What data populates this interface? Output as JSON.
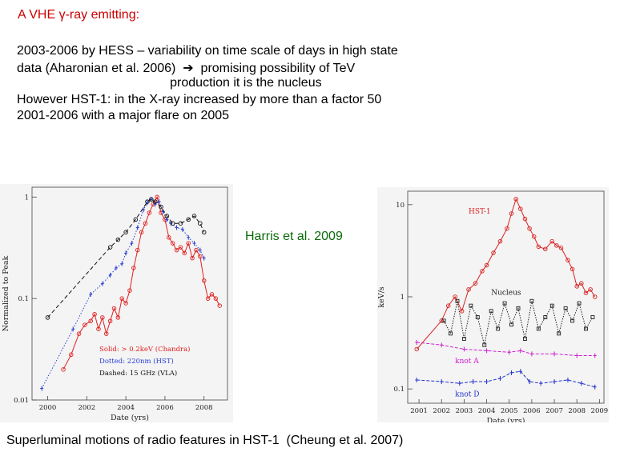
{
  "slide": {
    "title": "A VHE γ-ray emitting:",
    "lines": [
      "2003-2006 by HESS – variability on time scale of days in high state",
      "data (Aharonian et al. 2006)  ➔  promising possibility of TeV",
      "                                           production it is the nucleus",
      "However HST-1: in the X-ray increased by more than a factor 50",
      "2001-2006 with a major flare on 2005"
    ],
    "harris_label": "Harris et al. 2009",
    "caption": "Superluminal motions of radio features in HST-1  (Cheung et al. 2007)"
  },
  "chart_data": [
    {
      "type": "line",
      "scale": "log",
      "xlabel": "Date (yrs)",
      "ylabel": "Normalized to Peak",
      "xlim": [
        1999.2,
        2009.2
      ],
      "ylim": [
        0.01,
        1.25
      ],
      "xticks": [
        2000,
        2002,
        2004,
        2006,
        2008
      ],
      "xtick_labels": [
        "2000",
        "2002",
        "2004",
        "2006",
        "2008"
      ],
      "yticks": [
        0.01,
        0.1,
        1
      ],
      "ytick_labels": [
        "0.01",
        "0.1",
        "1"
      ],
      "legend": [
        "Solid: > 0.2keV (Chandra)",
        "Dotted: 220nm (HST)",
        "Dashed: 15 GHz (VLA)"
      ],
      "legend_colors": [
        "#e02020",
        "#2a3ed0",
        "#111111"
      ],
      "legend_position": "bottom-center",
      "series": [
        {
          "name": "Chandra X-ray",
          "color": "#e02020",
          "dash": "solid",
          "x": [
            2000.8,
            2001.2,
            2001.6,
            2001.9,
            2002.2,
            2002.4,
            2002.6,
            2002.8,
            2003.0,
            2003.2,
            2003.4,
            2003.6,
            2003.8,
            2004.0,
            2004.2,
            2004.4,
            2004.6,
            2004.8,
            2005.0,
            2005.2,
            2005.4,
            2005.6,
            2005.8,
            2006.0,
            2006.2,
            2006.4,
            2006.6,
            2006.8,
            2007.0,
            2007.2,
            2007.4,
            2007.6,
            2007.8,
            2008.0,
            2008.2,
            2008.4,
            2008.6,
            2008.8
          ],
          "y": [
            0.02,
            0.028,
            0.045,
            0.055,
            0.06,
            0.07,
            0.05,
            0.065,
            0.045,
            0.06,
            0.08,
            0.065,
            0.1,
            0.09,
            0.12,
            0.2,
            0.3,
            0.45,
            0.55,
            0.7,
            0.85,
            1.0,
            0.7,
            0.6,
            0.4,
            0.35,
            0.3,
            0.32,
            0.28,
            0.35,
            0.25,
            0.3,
            0.26,
            0.15,
            0.1,
            0.11,
            0.1,
            0.085
          ]
        },
        {
          "name": "HST 220nm",
          "color": "#2a3ed0",
          "dash": "dotted",
          "x": [
            1999.7,
            2001.3,
            2002.2,
            2002.8,
            2003.2,
            2003.5,
            2003.8,
            2004.0,
            2004.3,
            2004.6,
            2004.9,
            2005.1,
            2005.3,
            2005.5,
            2005.7,
            2005.9,
            2006.1,
            2006.3,
            2006.6,
            2006.9,
            2007.2,
            2007.5,
            2007.8,
            2008.0
          ],
          "y": [
            0.013,
            0.05,
            0.11,
            0.14,
            0.17,
            0.2,
            0.22,
            0.28,
            0.35,
            0.5,
            0.75,
            0.88,
            0.95,
            0.85,
            0.9,
            0.72,
            0.6,
            0.55,
            0.5,
            0.48,
            0.4,
            0.35,
            0.3,
            0.25
          ]
        },
        {
          "name": "VLA 15 GHz",
          "color": "#111111",
          "dash": "dashed",
          "x": [
            2000.0,
            2003.2,
            2003.6,
            2004.0,
            2004.5,
            2005.1,
            2005.3,
            2005.5,
            2005.8,
            2006.1,
            2006.4,
            2006.8,
            2007.2,
            2007.5,
            2007.8,
            2008.0
          ],
          "y": [
            0.065,
            0.32,
            0.38,
            0.45,
            0.6,
            0.9,
            0.95,
            0.9,
            0.8,
            0.65,
            0.55,
            0.55,
            0.6,
            0.65,
            0.55,
            0.45
          ]
        }
      ]
    },
    {
      "type": "line",
      "scale": "log",
      "xlabel": "Date (yrs)",
      "ylabel": "keV/s",
      "xlim": [
        2000.5,
        2009.2
      ],
      "ylim": [
        0.07,
        14
      ],
      "xticks": [
        2001,
        2002,
        2003,
        2004,
        2005,
        2006,
        2007,
        2008,
        2009
      ],
      "xtick_labels": [
        "2001",
        "2002",
        "2003",
        "2004",
        "2005",
        "2006",
        "2007",
        "2008",
        "2009"
      ],
      "yticks": [
        0.1,
        1,
        10
      ],
      "ytick_labels": [
        "0.1",
        "1",
        "10"
      ],
      "series": [
        {
          "name": "HST-1",
          "label": "HST-1",
          "color": "#d92020",
          "x": [
            2000.9,
            2002.0,
            2002.3,
            2002.6,
            2002.9,
            2003.2,
            2003.5,
            2003.8,
            2004.0,
            2004.3,
            2004.6,
            2004.9,
            2005.1,
            2005.3,
            2005.5,
            2005.7,
            2005.9,
            2006.1,
            2006.3,
            2006.6,
            2006.9,
            2007.1,
            2007.3,
            2007.6,
            2007.8,
            2008.0,
            2008.2,
            2008.4,
            2008.6,
            2008.8
          ],
          "y": [
            0.27,
            0.55,
            0.8,
            1.0,
            0.7,
            1.2,
            1.4,
            1.9,
            2.2,
            3.0,
            4.0,
            5.5,
            8.0,
            11.5,
            9.0,
            7.0,
            5.5,
            4.5,
            3.5,
            3.3,
            4.0,
            3.6,
            3.4,
            2.5,
            2.0,
            1.3,
            1.4,
            1.1,
            1.2,
            1.0
          ]
        },
        {
          "name": "Nucleus",
          "label": "Nucleus",
          "color": "#222222",
          "x": [
            2002.1,
            2002.4,
            2002.7,
            2003.0,
            2003.3,
            2003.6,
            2003.9,
            2004.2,
            2004.5,
            2004.8,
            2005.1,
            2005.4,
            2005.7,
            2006.0,
            2006.3,
            2006.6,
            2006.9,
            2007.2,
            2007.5,
            2007.8,
            2008.1,
            2008.4,
            2008.7
          ],
          "y": [
            0.55,
            0.4,
            0.9,
            0.35,
            0.8,
            0.6,
            0.3,
            0.7,
            0.45,
            0.85,
            0.5,
            0.75,
            0.35,
            0.9,
            0.45,
            0.6,
            0.8,
            0.4,
            0.75,
            0.55,
            0.85,
            0.45,
            0.6
          ]
        },
        {
          "name": "knot A",
          "label": "knot A",
          "color": "#d020d0",
          "x": [
            2000.9,
            2002.0,
            2003.0,
            2004.0,
            2005.0,
            2005.5,
            2006.0,
            2007.0,
            2008.0,
            2008.8
          ],
          "y": [
            0.32,
            0.3,
            0.27,
            0.26,
            0.25,
            0.26,
            0.24,
            0.24,
            0.23,
            0.23
          ]
        },
        {
          "name": "knot D",
          "label": "knot D",
          "color": "#2233cc",
          "x": [
            2000.9,
            2002.0,
            2002.8,
            2003.4,
            2004.0,
            2004.6,
            2005.1,
            2005.5,
            2005.9,
            2006.4,
            2007.0,
            2007.6,
            2008.2,
            2008.8
          ],
          "y": [
            0.125,
            0.12,
            0.115,
            0.12,
            0.12,
            0.13,
            0.15,
            0.155,
            0.12,
            0.115,
            0.12,
            0.125,
            0.115,
            0.105
          ]
        }
      ]
    }
  ]
}
